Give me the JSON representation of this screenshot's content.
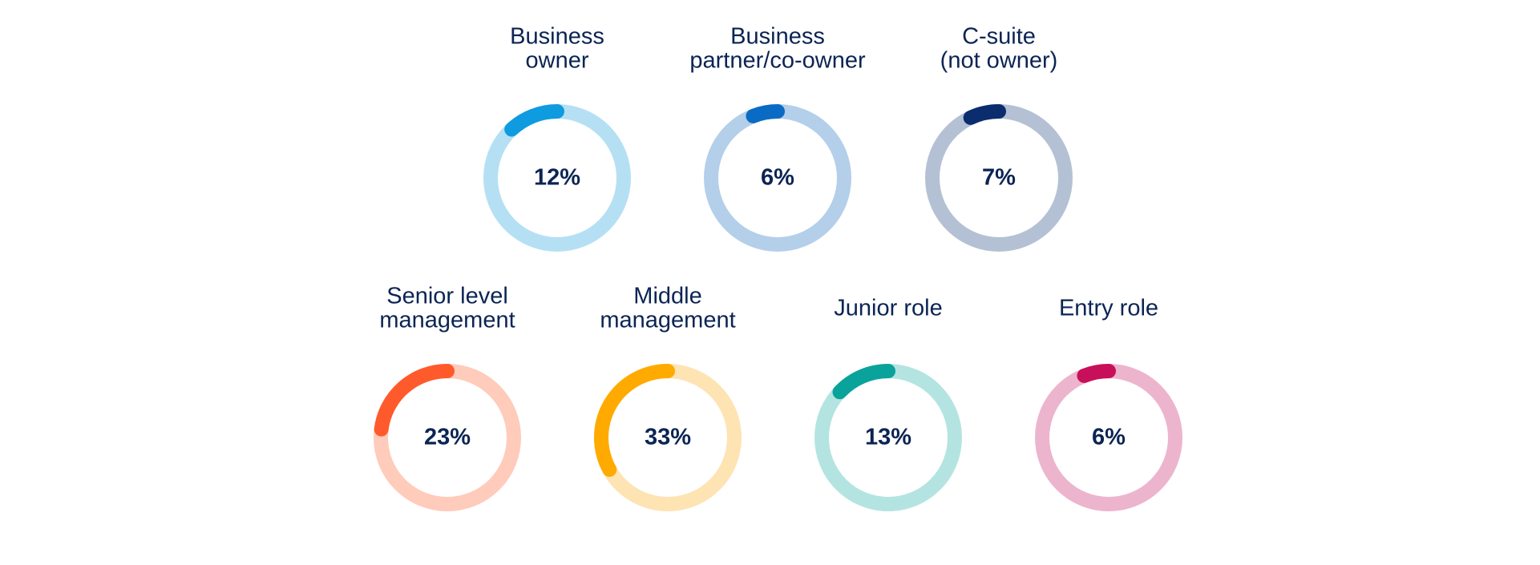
{
  "chart_data": {
    "type": "donut",
    "categories": [
      [
        "Business",
        "owner"
      ],
      [
        "Business",
        "partner/co-owner"
      ],
      [
        "C-suite",
        "(not owner)"
      ],
      [
        "Senior level",
        "management"
      ],
      [
        "Middle",
        "management"
      ],
      [
        "Junior role"
      ],
      [
        "Entry role"
      ]
    ],
    "values": [
      12,
      6,
      7,
      23,
      33,
      13,
      6
    ],
    "value_labels": [
      "12%",
      "6%",
      "7%",
      "23%",
      "33%",
      "13%",
      "6%"
    ],
    "colors": [
      "#0e9be0",
      "#0a6bc4",
      "#0b2d6e",
      "#ff5a2b",
      "#ffaa00",
      "#0aa39b",
      "#c8105a"
    ],
    "track_colors": [
      "#b5e0f4",
      "#b4cfe9",
      "#b4c1d4",
      "#ffcbbb",
      "#fee3b3",
      "#b4e4e1",
      "#edb4ce"
    ]
  }
}
